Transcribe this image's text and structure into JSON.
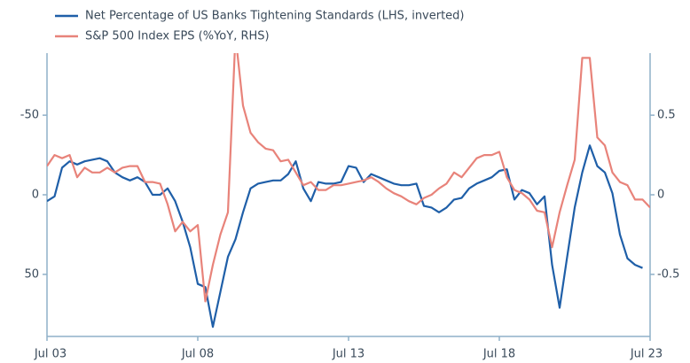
{
  "chart_data": {
    "type": "line",
    "x": [
      2003.5,
      2003.75,
      2004,
      2004.25,
      2004.5,
      2004.75,
      2005,
      2005.25,
      2005.5,
      2005.75,
      2006,
      2006.25,
      2006.5,
      2006.75,
      2007,
      2007.25,
      2007.5,
      2007.75,
      2008,
      2008.25,
      2008.5,
      2008.75,
      2009,
      2009.25,
      2009.5,
      2009.75,
      2010,
      2010.25,
      2010.5,
      2010.75,
      2011,
      2011.25,
      2011.5,
      2011.75,
      2012,
      2012.25,
      2012.5,
      2012.75,
      2013,
      2013.25,
      2013.5,
      2013.75,
      2014,
      2014.25,
      2014.5,
      2014.75,
      2015,
      2015.25,
      2015.5,
      2015.75,
      2016,
      2016.25,
      2016.5,
      2016.75,
      2017,
      2017.25,
      2017.5,
      2017.75,
      2018,
      2018.25,
      2018.5,
      2018.75,
      2019,
      2019.25,
      2019.5,
      2019.75,
      2020,
      2020.25,
      2020.5,
      2020.75,
      2021,
      2021.25,
      2021.5,
      2021.75,
      2022,
      2022.25,
      2022.5,
      2022.75,
      2023,
      2023.25,
      2023.5
    ],
    "series": [
      {
        "name": "Net Percentage of US Banks Tightening Standards (LHS, inverted)",
        "color": "#1f5fa8",
        "axis": "y",
        "values": [
          4,
          1,
          -17,
          -21,
          -19,
          -21,
          -22,
          -23,
          -21,
          -14,
          -11,
          -9,
          -11,
          -8,
          0,
          0,
          -4,
          4,
          17,
          33,
          56,
          58,
          83,
          61,
          39,
          28,
          11,
          -4,
          -7,
          -8,
          -9,
          -9,
          -13,
          -21,
          -4,
          4,
          -8,
          -7,
          -7,
          -8,
          -18,
          -17,
          -8,
          -13,
          -11,
          -9,
          -7,
          -6,
          -6,
          -7,
          7,
          8,
          11,
          8,
          3,
          2,
          -4,
          -7,
          -9,
          -11,
          -15,
          -16,
          3,
          -3,
          -1,
          6,
          1,
          44,
          71,
          39,
          8,
          -14,
          -31,
          -18,
          -14,
          -1,
          25,
          40,
          44,
          46,
          null
        ]
      },
      {
        "name": "S&P 500 Index EPS (%YoY, RHS)",
        "color": "#e8837a",
        "axis": "y2",
        "values": [
          0.18,
          0.25,
          0.23,
          0.25,
          0.11,
          0.17,
          0.14,
          0.14,
          0.17,
          0.14,
          0.17,
          0.18,
          0.18,
          0.08,
          0.08,
          0.07,
          -0.06,
          -0.23,
          -0.17,
          -0.23,
          -0.19,
          -0.67,
          -0.44,
          -0.25,
          -0.11,
          1.0,
          0.56,
          0.39,
          0.33,
          0.29,
          0.28,
          0.21,
          0.22,
          0.14,
          0.06,
          0.08,
          0.03,
          0.03,
          0.06,
          0.06,
          0.07,
          0.08,
          0.09,
          0.11,
          0.08,
          0.04,
          0.01,
          -0.01,
          -0.04,
          -0.06,
          -0.02,
          0,
          0.04,
          0.07,
          0.14,
          0.11,
          0.17,
          0.23,
          0.25,
          0.25,
          0.27,
          0.11,
          0.03,
          0.01,
          -0.03,
          -0.1,
          -0.11,
          -0.33,
          -0.11,
          0.06,
          0.22,
          0.86,
          0.86,
          0.36,
          0.31,
          0.14,
          0.08,
          0.06,
          -0.03,
          -0.03,
          -0.08
        ]
      }
    ],
    "xlim": [
      2003.5,
      2023.5
    ],
    "xticks": [
      {
        "value": 2003.5,
        "label": "Jul 03"
      },
      {
        "value": 2008.5,
        "label": "Jul 08"
      },
      {
        "value": 2013.5,
        "label": "Jul 13"
      },
      {
        "value": 2018.5,
        "label": "Jul 18"
      },
      {
        "value": 2023.5,
        "label": "Jul 23"
      }
    ],
    "ylim": [
      89,
      -89
    ],
    "yticks": [
      -50,
      0,
      50
    ],
    "y2lim": [
      -0.89,
      0.89
    ],
    "y2ticks": [
      0.5,
      0,
      -0.5
    ]
  }
}
